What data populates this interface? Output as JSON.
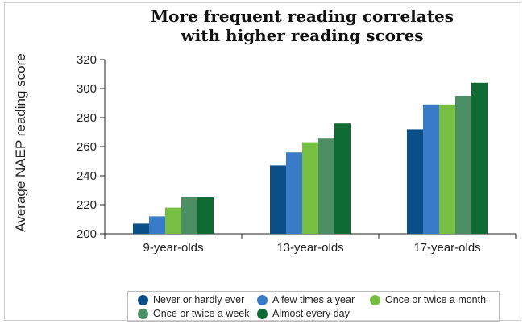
{
  "chart_data": {
    "type": "bar",
    "title": [
      "More frequent reading correlates",
      "with higher reading scores"
    ],
    "xlabel": "",
    "ylabel": "Average NAEP reading score",
    "ylim": [
      200,
      320
    ],
    "yticks": [
      200,
      220,
      240,
      260,
      280,
      300,
      320
    ],
    "grid": false,
    "legend_position": "bottom",
    "categories": [
      "9-year-olds",
      "13-year-olds",
      "17-year-olds"
    ],
    "series": [
      {
        "name": "Never or hardly ever",
        "color": "#0a4f87",
        "values": [
          207,
          247,
          272
        ]
      },
      {
        "name": "A few times a year",
        "color": "#3a7bc8",
        "values": [
          212,
          256,
          289
        ]
      },
      {
        "name": "Once or twice a month",
        "color": "#76bf43",
        "values": [
          218,
          263,
          289
        ]
      },
      {
        "name": "Once or twice a week",
        "color": "#4c8f64",
        "values": [
          225,
          266,
          295
        ]
      },
      {
        "name": "Almost every day",
        "color": "#0f6b34",
        "values": [
          225,
          276,
          304
        ]
      }
    ]
  }
}
